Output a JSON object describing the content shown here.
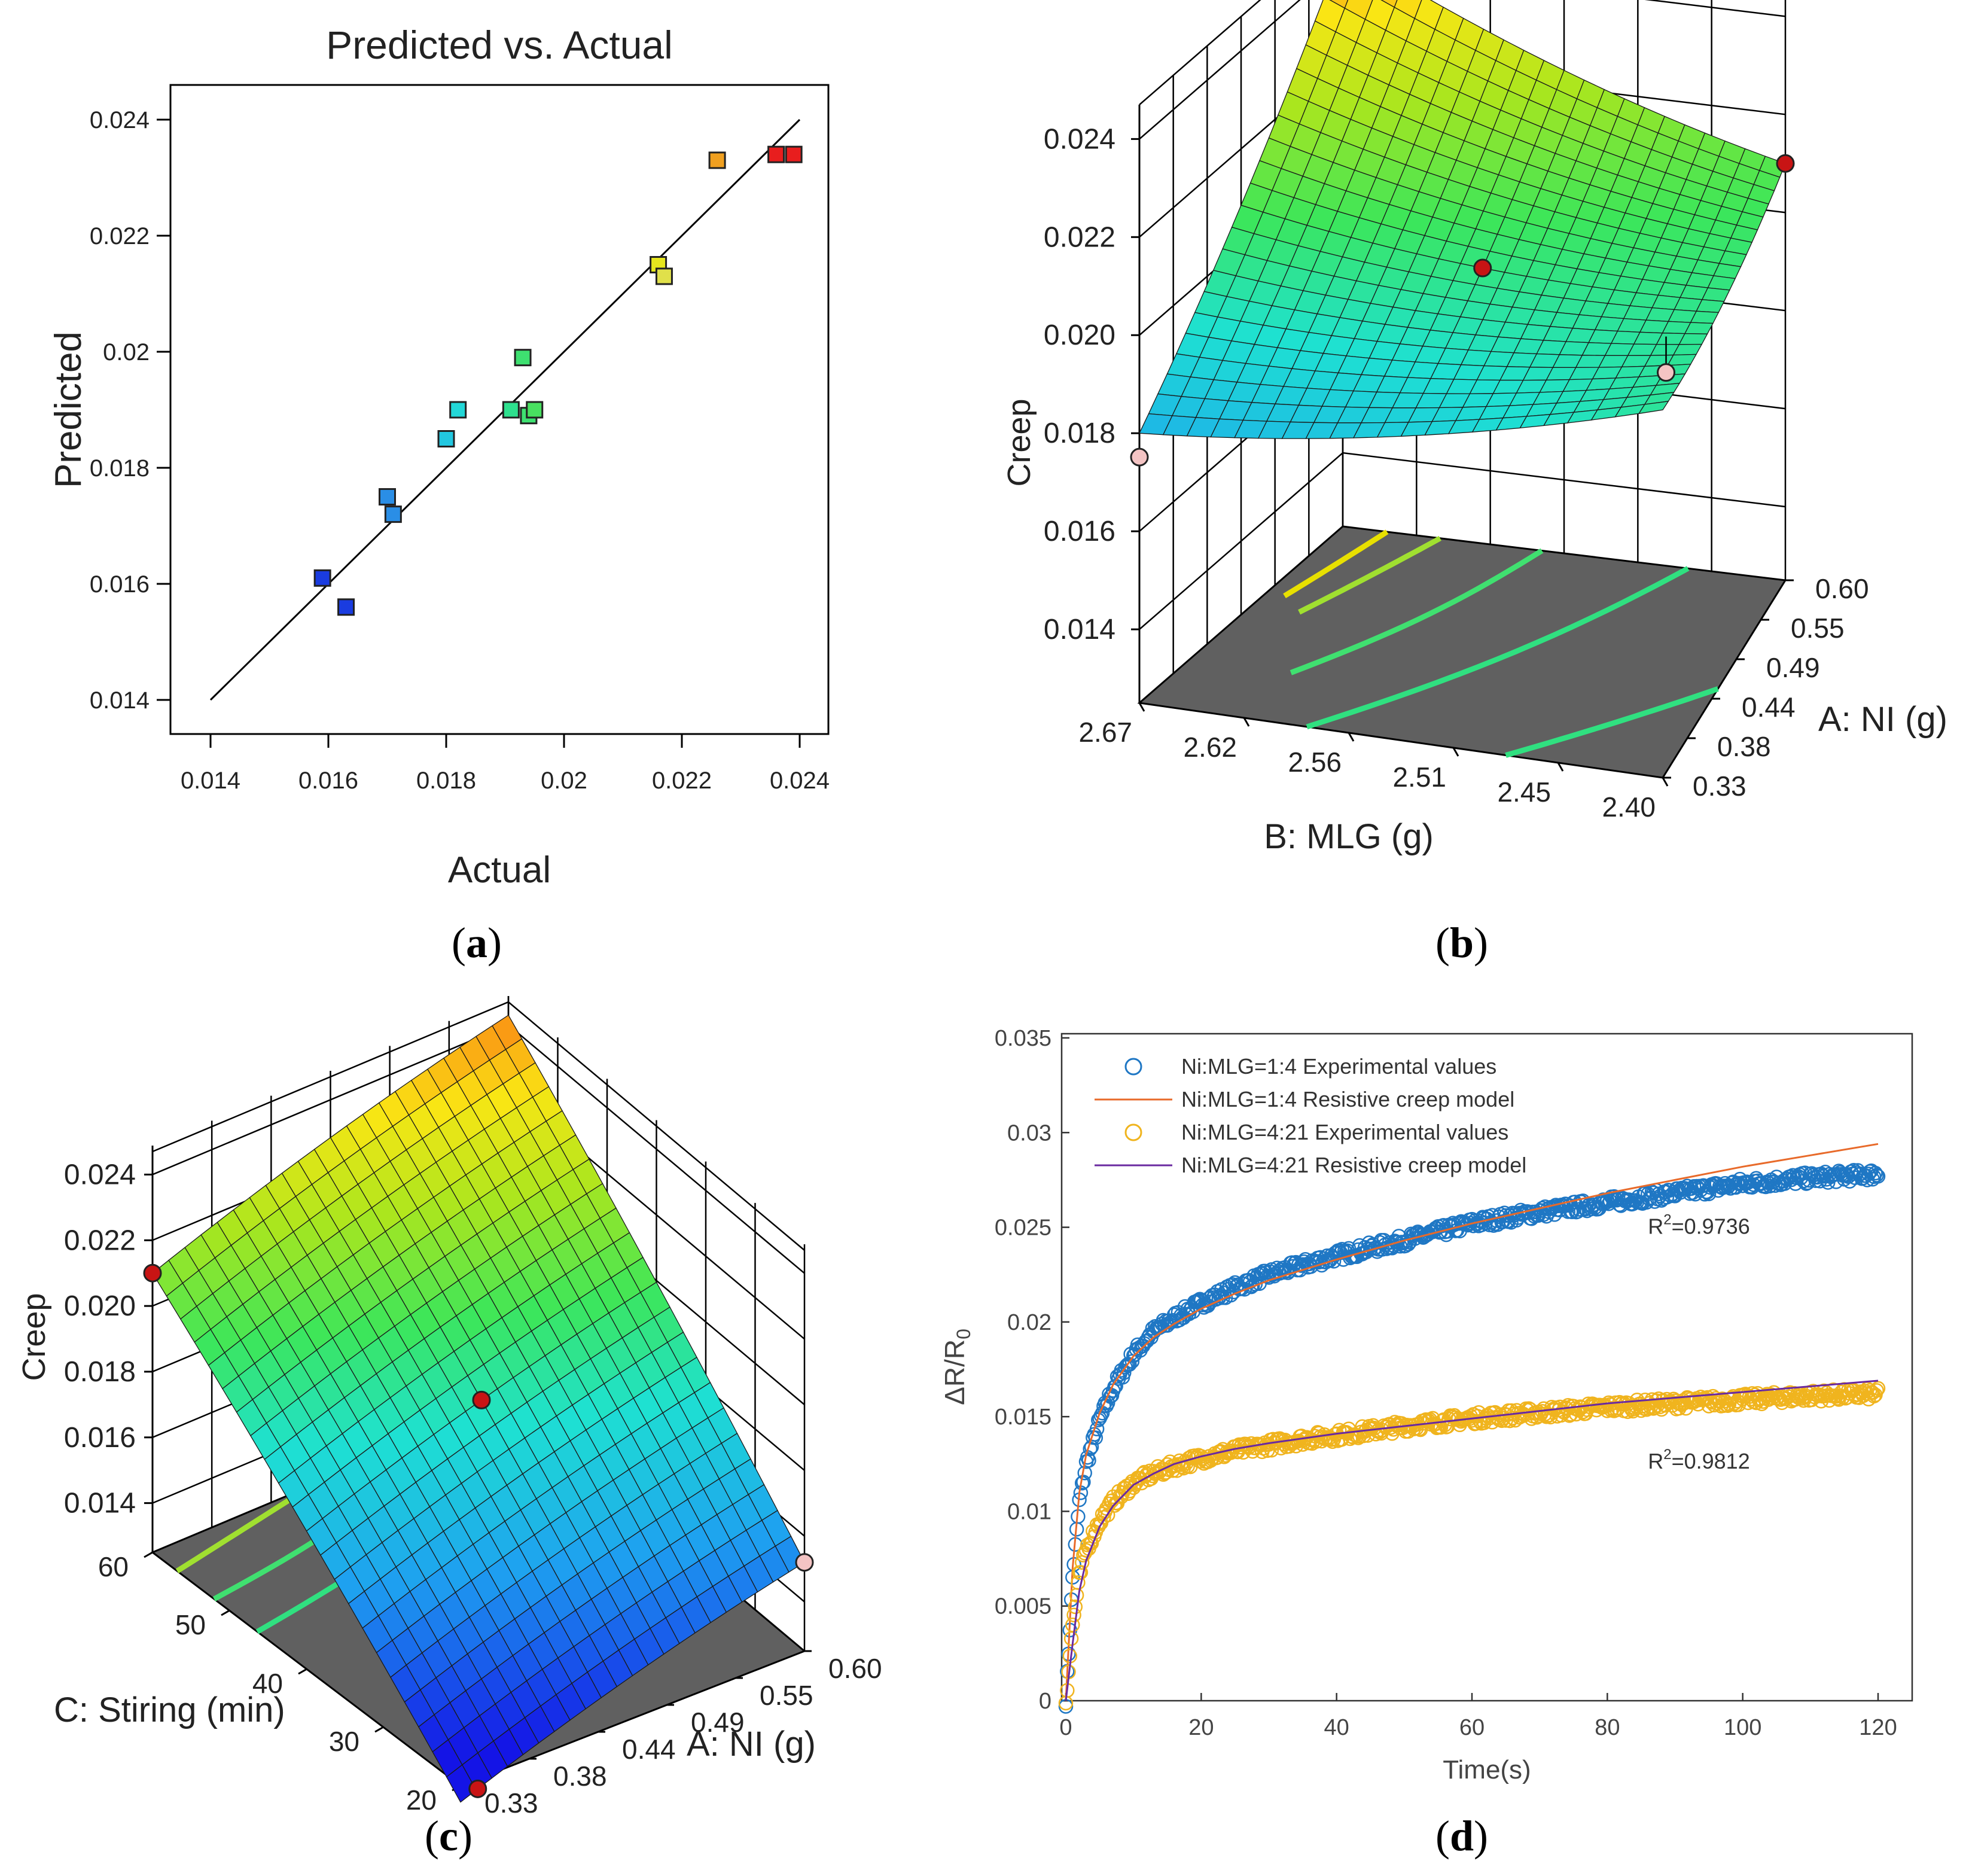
{
  "panels": {
    "a": {
      "caption_label": "a"
    },
    "b": {
      "caption_label": "b"
    },
    "c": {
      "caption_label": "c"
    },
    "d": {
      "caption_label": "d"
    }
  },
  "chart_data": [
    {
      "panel": "a",
      "type": "scatter",
      "title": "Predicted vs. Actual",
      "xlabel": "Actual",
      "ylabel": "Predicted",
      "xlim": [
        0.014,
        0.024
      ],
      "ylim": [
        0.014,
        0.024
      ],
      "xticks": [
        "0.014",
        "0.016",
        "0.018",
        "0.02",
        "0.022",
        "0.024"
      ],
      "yticks": [
        "0.014",
        "0.016",
        "0.018",
        "0.02",
        "0.022",
        "0.024"
      ],
      "reference_line": [
        [
          0.014,
          0.014
        ],
        [
          0.024,
          0.024
        ]
      ],
      "points": [
        {
          "x": 0.0159,
          "y": 0.0161,
          "color": "#1a3ce0"
        },
        {
          "x": 0.0163,
          "y": 0.0156,
          "color": "#1a3ce0"
        },
        {
          "x": 0.017,
          "y": 0.0175,
          "color": "#2a8ee6"
        },
        {
          "x": 0.0171,
          "y": 0.0172,
          "color": "#2a8ee6"
        },
        {
          "x": 0.018,
          "y": 0.0185,
          "color": "#22c7e0"
        },
        {
          "x": 0.0182,
          "y": 0.019,
          "color": "#22d7d7"
        },
        {
          "x": 0.0191,
          "y": 0.019,
          "color": "#2ee08e"
        },
        {
          "x": 0.0193,
          "y": 0.0199,
          "color": "#3ee070"
        },
        {
          "x": 0.0194,
          "y": 0.0189,
          "color": "#3ee070"
        },
        {
          "x": 0.0195,
          "y": 0.019,
          "color": "#48e060"
        },
        {
          "x": 0.0216,
          "y": 0.0215,
          "color": "#e6e61e"
        },
        {
          "x": 0.0217,
          "y": 0.0213,
          "color": "#e0e04a"
        },
        {
          "x": 0.0226,
          "y": 0.0233,
          "color": "#f0a020"
        },
        {
          "x": 0.0236,
          "y": 0.0234,
          "color": "#e81e1e"
        },
        {
          "x": 0.0239,
          "y": 0.0234,
          "color": "#e81e1e"
        }
      ]
    },
    {
      "panel": "b",
      "type": "surface",
      "zlabel": "Creep",
      "xlabel": "B: MLG (g)",
      "ylabel": "A: NI (g)",
      "zticks": [
        "0.014",
        "0.016",
        "0.018",
        "0.020",
        "0.022",
        "0.024"
      ],
      "xticks": [
        "2.67",
        "2.62",
        "2.56",
        "2.51",
        "2.45",
        "2.40"
      ],
      "yticks": [
        "0.33",
        "0.38",
        "0.44",
        "0.49",
        "0.55",
        "0.60"
      ],
      "corner_values": {
        "far": 0.0243,
        "right": 0.021,
        "left": 0.018,
        "front": 0.0178
      }
    },
    {
      "panel": "c",
      "type": "surface",
      "zlabel": "Creep",
      "xlabel": "C: Stiring (min)",
      "ylabel": "A: NI (g)",
      "zticks": [
        "0.014",
        "0.016",
        "0.018",
        "0.020",
        "0.022",
        "0.024"
      ],
      "xticks": [
        "60",
        "50",
        "40",
        "30",
        "20"
      ],
      "yticks": [
        "0.33",
        "0.38",
        "0.44",
        "0.49",
        "0.55",
        "0.60"
      ],
      "corner_values": {
        "far": 0.0243,
        "left": 0.021,
        "right": 0.0152,
        "front": 0.0125
      }
    },
    {
      "panel": "d",
      "type": "line",
      "xlabel": "Time(s)",
      "ylabel": "ΔR/R",
      "ylabel_sub": "0",
      "xlim": [
        0,
        125
      ],
      "ylim": [
        0,
        0.035
      ],
      "xticks": [
        "0",
        "20",
        "40",
        "60",
        "80",
        "100",
        "120"
      ],
      "yticks": [
        "0",
        "0.005",
        "0.01",
        "0.015",
        "0.02",
        "0.025",
        "0.03",
        "0.035"
      ],
      "legend_position": "top-left",
      "series": [
        {
          "name": "Ni:MLG=1:4 Experimental values",
          "style": "markers",
          "color": "#1f77c4",
          "x": [
            0,
            1,
            2,
            3,
            5,
            7,
            10,
            13,
            16,
            20,
            25,
            30,
            35,
            40,
            50,
            60,
            70,
            80,
            90,
            100,
            110,
            120
          ],
          "y": [
            0,
            0.0065,
            0.0105,
            0.0125,
            0.0148,
            0.0165,
            0.0183,
            0.0195,
            0.0202,
            0.021,
            0.0218,
            0.0225,
            0.023,
            0.0235,
            0.0243,
            0.0252,
            0.0258,
            0.0263,
            0.0268,
            0.0273,
            0.0276,
            0.0278
          ]
        },
        {
          "name": "Ni:MLG=1:4 Resistive creep model",
          "style": "line",
          "color": "#e86a2a",
          "x": [
            0,
            1,
            2,
            3,
            5,
            7,
            10,
            13,
            16,
            20,
            25,
            30,
            40,
            50,
            60,
            70,
            80,
            90,
            100,
            110,
            120
          ],
          "y": [
            0,
            0.007,
            0.011,
            0.013,
            0.0152,
            0.0167,
            0.0182,
            0.0192,
            0.0199,
            0.0207,
            0.0215,
            0.0222,
            0.0233,
            0.0243,
            0.0252,
            0.026,
            0.0268,
            0.0275,
            0.0282,
            0.0288,
            0.0294
          ]
        },
        {
          "name": "Ni:MLG=4:21 Experimental values",
          "style": "markers",
          "color": "#f0b41e",
          "x": [
            0,
            1,
            2,
            3,
            5,
            7,
            10,
            13,
            16,
            20,
            25,
            30,
            35,
            40,
            50,
            60,
            70,
            80,
            90,
            100,
            110,
            120
          ],
          "y": [
            0,
            0.004,
            0.0065,
            0.008,
            0.0095,
            0.0105,
            0.0115,
            0.012,
            0.0124,
            0.0128,
            0.0132,
            0.0135,
            0.0138,
            0.014,
            0.0145,
            0.0149,
            0.0152,
            0.0155,
            0.0157,
            0.0159,
            0.0161,
            0.0162
          ]
        },
        {
          "name": "Ni:MLG=4:21 Resistive creep model",
          "style": "line",
          "color": "#6a2aa0",
          "x": [
            0,
            1,
            2,
            3,
            5,
            7,
            10,
            13,
            16,
            20,
            25,
            30,
            40,
            50,
            60,
            70,
            80,
            90,
            100,
            110,
            120
          ],
          "y": [
            0,
            0.003,
            0.0058,
            0.0074,
            0.0092,
            0.0103,
            0.0114,
            0.012,
            0.0125,
            0.0129,
            0.0133,
            0.0136,
            0.0141,
            0.0145,
            0.0149,
            0.0153,
            0.0157,
            0.016,
            0.0163,
            0.0166,
            0.0169
          ]
        }
      ],
      "annotations": [
        {
          "text": "R",
          "sup": "2",
          "value": "=0.9736",
          "x": 86,
          "y": 0.0251
        },
        {
          "text": "R",
          "sup": "2",
          "value": "=0.9812",
          "x": 86,
          "y": 0.0127
        }
      ]
    }
  ]
}
